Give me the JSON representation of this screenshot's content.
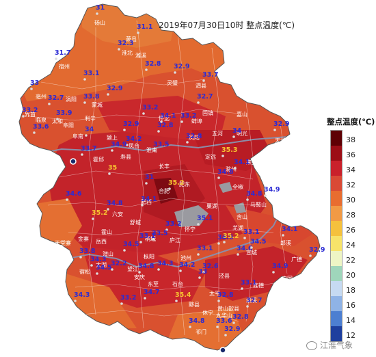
{
  "title": "2019年07月30日10时  整点温度(℃)",
  "legend": {
    "title": "整点温度(℃)",
    "ticks": [
      "38",
      "36",
      "34",
      "32",
      "30",
      "28",
      "26",
      "24",
      "22",
      "20",
      "18",
      "16",
      "14",
      "12"
    ],
    "colors": [
      "#5e0004",
      "#9c0e16",
      "#c9212b",
      "#d94a35",
      "#e86d30",
      "#f19a45",
      "#f5c13d",
      "#f7e36a",
      "#eef5c5",
      "#9fd6bb",
      "#c6daf2",
      "#8fb3e6",
      "#4d7fd1",
      "#1e3f9e"
    ]
  },
  "watermark": "江淮气象",
  "place_names": [
    "砀山",
    "萧县",
    "淮北",
    "宿州",
    "天堂寨",
    "九华山",
    "黄山",
    "祁门",
    "歙县",
    "绩溪",
    "旌德",
    "宁国",
    "巢湖",
    "含山",
    "马鞍山",
    "芜湖",
    "宣城",
    "郎溪",
    "广德",
    "泾县",
    "太平",
    "黟县",
    "休宁",
    "东至",
    "石台",
    "池州",
    "安庆",
    "潜山",
    "太湖",
    "宿松",
    "望江",
    "枞阳",
    "桐城",
    "怀宁",
    "庐江",
    "舒城",
    "六安",
    "霍山",
    "金寨",
    "岳西",
    "合肥",
    "肥西",
    "肥东",
    "长丰",
    "淮南",
    "凤台",
    "寿县",
    "霍邱",
    "阜南",
    "颍上",
    "阜阳",
    "临泉",
    "界首",
    "太和",
    "亳州",
    "涡阳",
    "蒙城",
    "利辛",
    "蚌埠",
    "怀远",
    "固镇",
    "五河",
    "明光",
    "天长",
    "来安",
    "滁州",
    "全椒",
    "定远",
    "凤阳",
    "嘉山",
    "泗县",
    "灵璧",
    "濉溪"
  ],
  "stations": [
    {
      "v": "31",
      "c": "blue"
    },
    {
      "v": "31.1",
      "c": "blue"
    },
    {
      "v": "32.3",
      "c": "blue"
    },
    {
      "v": "31.7",
      "c": "blue"
    },
    {
      "v": "33.1",
      "c": "blue"
    },
    {
      "v": "33",
      "c": "blue"
    },
    {
      "v": "32.7",
      "c": "blue"
    },
    {
      "v": "33.8",
      "c": "blue"
    },
    {
      "v": "32.9",
      "c": "blue"
    },
    {
      "v": "32.8",
      "c": "blue"
    },
    {
      "v": "32.9",
      "c": "blue"
    },
    {
      "v": "33.7",
      "c": "blue"
    },
    {
      "v": "33.2",
      "c": "blue"
    },
    {
      "v": "33.9",
      "c": "blue"
    },
    {
      "v": "32.7",
      "c": "blue"
    },
    {
      "v": "33.2",
      "c": "blue"
    },
    {
      "v": "32.9",
      "c": "blue"
    },
    {
      "v": "32.8",
      "c": "blue"
    },
    {
      "v": "33.6",
      "c": "blue"
    },
    {
      "v": "34",
      "c": "blue"
    },
    {
      "v": "33.2",
      "c": "blue"
    },
    {
      "v": "34.1",
      "c": "blue"
    },
    {
      "v": "34.2",
      "c": "blue"
    },
    {
      "v": "33.5",
      "c": "blue"
    },
    {
      "v": "34.9",
      "c": "blue"
    },
    {
      "v": "33.7",
      "c": "blue"
    },
    {
      "v": "32.8",
      "c": "blue"
    },
    {
      "v": "35.3",
      "c": "orange"
    },
    {
      "v": "32.9",
      "c": "blue"
    },
    {
      "v": "34",
      "c": "blue"
    },
    {
      "v": "34.1",
      "c": "blue"
    },
    {
      "v": "34.8",
      "c": "blue"
    },
    {
      "v": "34.9",
      "c": "blue"
    },
    {
      "v": "34.8",
      "c": "blue"
    },
    {
      "v": "31",
      "c": "blue"
    },
    {
      "v": "35",
      "c": "orange"
    },
    {
      "v": "35.2",
      "c": "orange"
    },
    {
      "v": "34.6",
      "c": "blue"
    },
    {
      "v": "34.8",
      "c": "blue"
    },
    {
      "v": "35.2",
      "c": "orange"
    },
    {
      "v": "34.1",
      "c": "blue"
    },
    {
      "v": "33.2",
      "c": "blue"
    },
    {
      "v": "33.1",
      "c": "blue"
    },
    {
      "v": "35.1",
      "c": "blue"
    },
    {
      "v": "33.5",
      "c": "blue"
    },
    {
      "v": "33.1",
      "c": "blue"
    },
    {
      "v": "33.8",
      "c": "blue"
    },
    {
      "v": "34.3",
      "c": "blue"
    },
    {
      "v": "34.6",
      "c": "blue"
    },
    {
      "v": "34.5",
      "c": "blue"
    },
    {
      "v": "32.2",
      "c": "blue"
    },
    {
      "v": "34.8",
      "c": "blue"
    },
    {
      "v": "35.2",
      "c": "orange"
    },
    {
      "v": "34.6",
      "c": "blue"
    },
    {
      "v": "34.5",
      "c": "blue"
    },
    {
      "v": "33.1",
      "c": "blue"
    },
    {
      "v": "34.1",
      "c": "blue"
    },
    {
      "v": "32.9",
      "c": "blue"
    },
    {
      "v": "34.9",
      "c": "blue"
    },
    {
      "v": "35.4",
      "c": "orange"
    },
    {
      "v": "34.3",
      "c": "blue"
    },
    {
      "v": "34.2",
      "c": "blue"
    },
    {
      "v": "32.6",
      "c": "blue"
    },
    {
      "v": "32.8",
      "c": "blue"
    },
    {
      "v": "33.1",
      "c": "blue"
    },
    {
      "v": "32.7",
      "c": "blue"
    },
    {
      "v": "34.3",
      "c": "blue"
    },
    {
      "v": "33.2",
      "c": "blue"
    },
    {
      "v": "34.7",
      "c": "blue"
    },
    {
      "v": "34.8",
      "c": "blue"
    },
    {
      "v": "33.6",
      "c": "blue"
    },
    {
      "v": "32.8",
      "c": "blue"
    },
    {
      "v": "33",
      "c": "blue"
    },
    {
      "v": "32.9",
      "c": "blue"
    },
    {
      "v": "34.5",
      "c": "blue"
    }
  ]
}
